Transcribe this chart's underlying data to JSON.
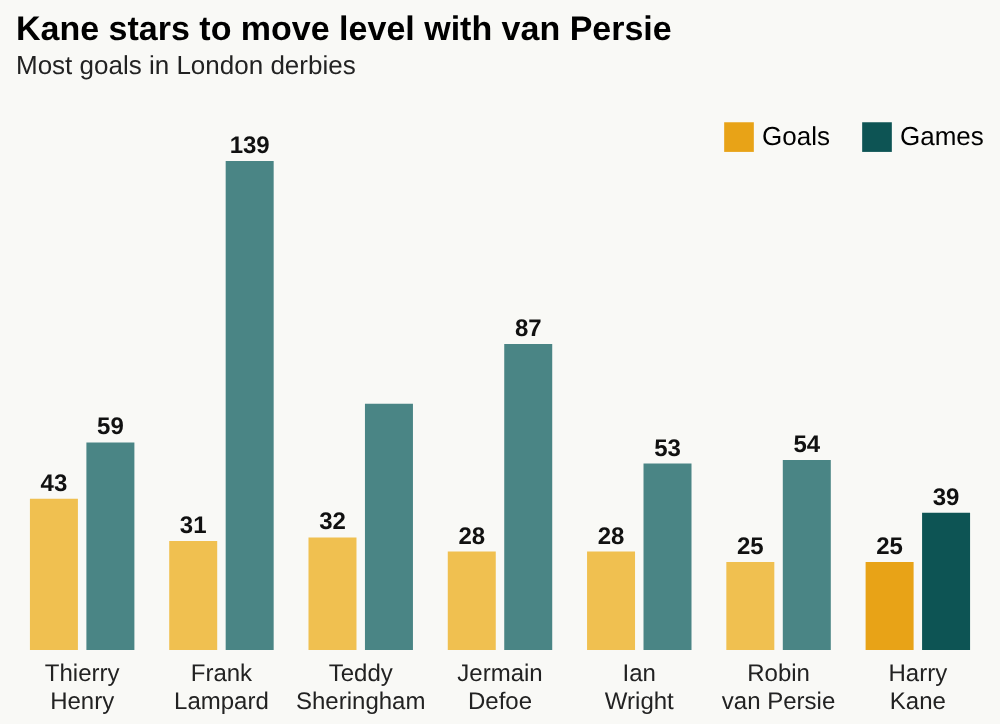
{
  "chart_data": {
    "type": "bar",
    "title": "Kane stars to move level with van Persie",
    "subtitle": "Most goals in London derbies",
    "categories": [
      "Thierry\nHenry",
      "Frank\nLampard",
      "Teddy\nSheringham",
      "Jermain\nDefoe",
      "Ian\nWright",
      "Robin\nvan Persie",
      "Harry\nKane"
    ],
    "series": [
      {
        "name": "Goals",
        "color": "#e8a317",
        "colors": [
          "#f0c050",
          "#f0c050",
          "#f0c050",
          "#f0c050",
          "#f0c050",
          "#f0c050",
          "#e8a317"
        ],
        "values": [
          43,
          31,
          32,
          28,
          28,
          25,
          25
        ],
        "value_labels": [
          "43",
          "31",
          "32",
          "28",
          "28",
          "25",
          "25"
        ]
      },
      {
        "name": "Games",
        "color": "#0d5454",
        "colors": [
          "#4a8585",
          "#4a8585",
          "#4a8585",
          "#4a8585",
          "#4a8585",
          "#4a8585",
          "#0d5454"
        ],
        "values": [
          59,
          139,
          70,
          87,
          53,
          54,
          39
        ],
        "value_labels": [
          "59",
          "139",
          null,
          "87",
          "53",
          "54",
          "39"
        ]
      }
    ],
    "legend": "top right"
  }
}
